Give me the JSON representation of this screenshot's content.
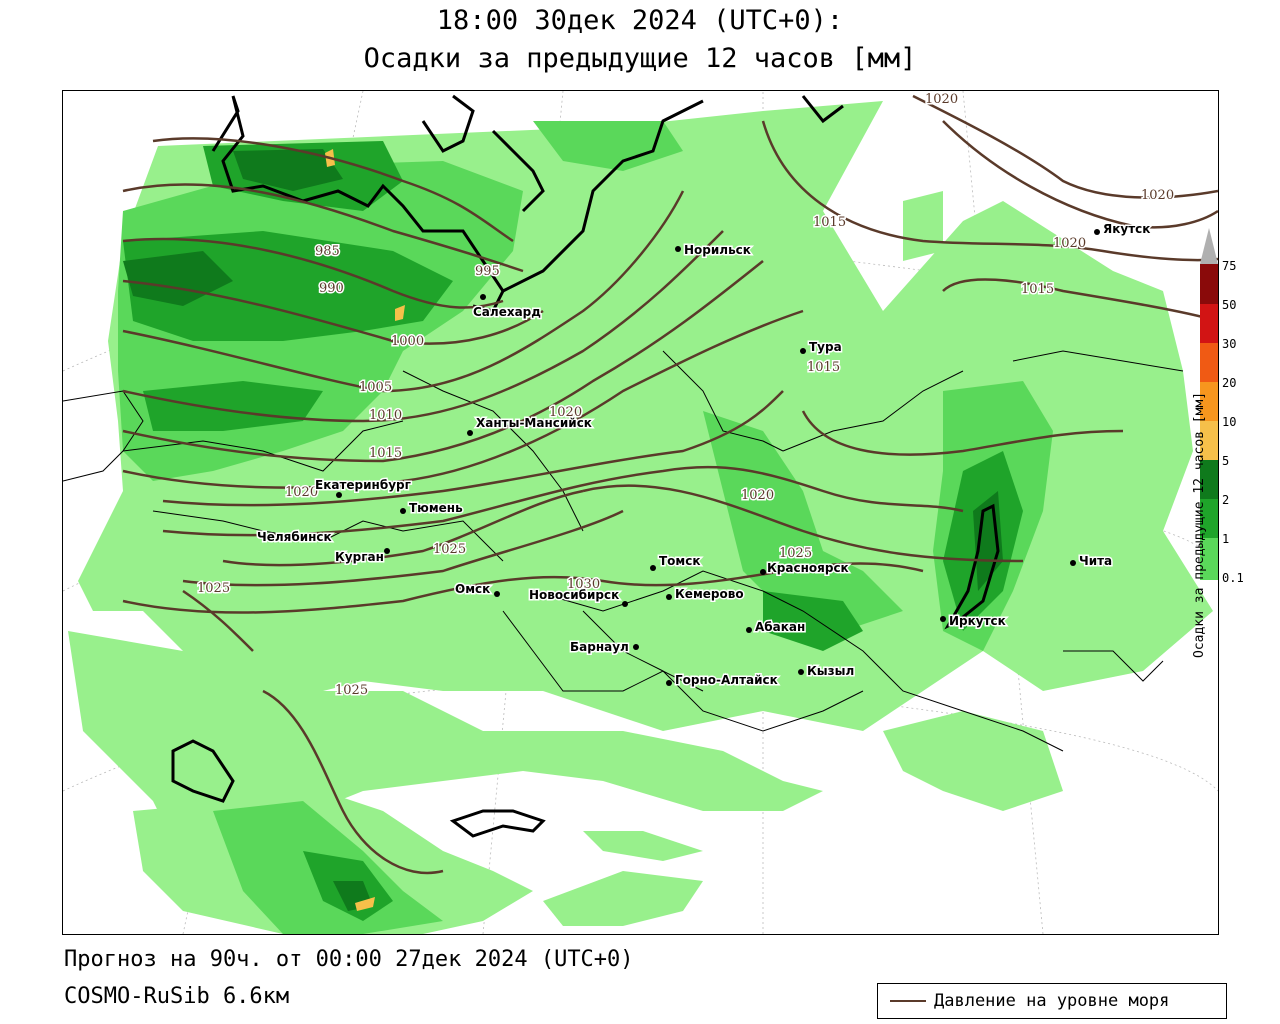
{
  "header": {
    "line1": "18:00 30дек 2024 (UTC+0):",
    "line2": "Осадки за предыдущие 12 часов [мм]"
  },
  "footer": {
    "forecast": "Прогноз на 90ч. от 00:00 27дек 2024 (UTC+0)",
    "model": "COSMO-RuSib 6.6км"
  },
  "legend": {
    "isobar_label": "Давление на уровне моря",
    "isobar_color": "#5a3a2a"
  },
  "colorbar": {
    "title": "Осадки за предыдущие 12 часов [мм]",
    "levels": [
      "0.1",
      "1",
      "2",
      "5",
      "10",
      "20",
      "30",
      "50",
      "75"
    ],
    "colors": [
      "#98f08c",
      "#5ad85a",
      "#1fa42a",
      "#0f7a1c",
      "#f6c04a",
      "#f7961e",
      "#f05a14",
      "#d21414",
      "#8a0a0a",
      "#b0b0b0"
    ]
  },
  "cities": [
    {
      "name": "Якутск",
      "id": "yakutsk"
    },
    {
      "name": "Норильск",
      "id": "norilsk"
    },
    {
      "name": "Салехард",
      "id": "salekhard"
    },
    {
      "name": "Тура",
      "id": "tura"
    },
    {
      "name": "Ханты-Мансийск",
      "id": "khanty"
    },
    {
      "name": "Екатеринбург",
      "id": "ekb"
    },
    {
      "name": "Тюмень",
      "id": "tyumen"
    },
    {
      "name": "Челябинск",
      "id": "chelyabinsk"
    },
    {
      "name": "Курган",
      "id": "kurgan"
    },
    {
      "name": "Омск",
      "id": "omsk"
    },
    {
      "name": "Новосибирск",
      "id": "novosibirsk"
    },
    {
      "name": "Томск",
      "id": "tomsk"
    },
    {
      "name": "Кемерово",
      "id": "kemerovo"
    },
    {
      "name": "Красноярск",
      "id": "krasnoyarsk"
    },
    {
      "name": "Барнаул",
      "id": "barnaul"
    },
    {
      "name": "Абакан",
      "id": "abakan"
    },
    {
      "name": "Горно-Алтайск",
      "id": "gorno"
    },
    {
      "name": "Кызыл",
      "id": "kyzyl"
    },
    {
      "name": "Иркутск",
      "id": "irkutsk"
    },
    {
      "name": "Чита",
      "id": "chita"
    }
  ],
  "isobar_labels": [
    "1020",
    "1020",
    "1020",
    "1015",
    "1015",
    "1015",
    "985",
    "990",
    "995",
    "1000",
    "1005",
    "1010",
    "1015",
    "1020",
    "1020",
    "1020",
    "1025",
    "1025",
    "1030",
    "1025",
    "1025"
  ]
}
